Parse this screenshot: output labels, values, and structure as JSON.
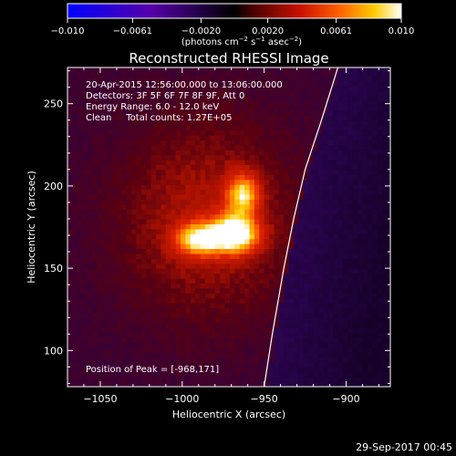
{
  "chart_data": {
    "type": "heatmap",
    "title": "Reconstructed RHESSI Image",
    "xlabel": "Heliocentric X (arcsec)",
    "ylabel": "Heliocentric Y (arcsec)",
    "xlim": [
      -1070,
      -873
    ],
    "ylim": [
      78,
      272
    ],
    "x_ticks": [
      -1050,
      -1000,
      -950,
      -900
    ],
    "y_ticks": [
      100,
      150,
      200,
      250
    ],
    "x_tick_labels": [
      "−1050",
      "−1000",
      "−950",
      "−900"
    ],
    "y_tick_labels": [
      "100",
      "150",
      "200",
      "250"
    ],
    "colorbar": {
      "range": [
        -0.01,
        0.01
      ],
      "ticks": [
        -0.01,
        -0.0061,
        -0.002,
        0.002,
        0.0061,
        0.01
      ],
      "tick_labels": [
        "−0.010",
        "−0.0061",
        "−0.0020",
        "0.0020",
        "0.0061",
        "0.010"
      ],
      "unit_label_base": "(photons cm",
      "unit_exp1": "−2",
      "unit_mid1": " s",
      "unit_exp2": "−1",
      "unit_mid2": " asec",
      "unit_exp3": "−2",
      "unit_close": ")",
      "colors": [
        "#0000ff",
        "#5500aa",
        "#000000",
        "#440000",
        "#cc1100",
        "#ff6600",
        "#ffcc00",
        "#ffffff"
      ]
    },
    "annotations": [
      "20-Apr-2015 12:56:00.000 to 13:06:00.000",
      "Detectors: 3F 5F 6F 7F 8F 9F, Att 0",
      "Energy Range: 6.0 - 12.0 keV",
      "Clean     Total counts: 1.27E+05"
    ],
    "peak_text": "Position of Peak = [-968,171]",
    "peak": [
      -968,
      171
    ],
    "limb_curve": [
      [
        -950,
        78
      ],
      [
        -945,
        110
      ],
      [
        -938,
        150
      ],
      [
        -932,
        180
      ],
      [
        -925,
        210
      ],
      [
        -915,
        240
      ],
      [
        -905,
        272
      ]
    ],
    "sources": [
      {
        "x": -968,
        "y": 171,
        "sigma_x": 10,
        "sigma_y": 8,
        "amp": 1.0
      },
      {
        "x": -990,
        "y": 168,
        "sigma_x": 10,
        "sigma_y": 7,
        "amp": 0.75
      },
      {
        "x": -963,
        "y": 195,
        "sigma_x": 7,
        "sigma_y": 9,
        "amp": 0.7
      },
      {
        "x": -985,
        "y": 180,
        "sigma_x": 40,
        "sigma_y": 45,
        "amp": 0.32
      }
    ]
  },
  "footer": {
    "timestamp": "29-Sep-2017 00:45"
  }
}
